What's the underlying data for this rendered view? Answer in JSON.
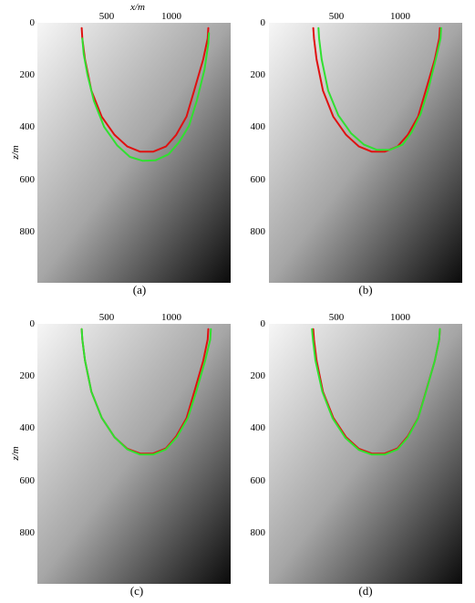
{
  "figure": {
    "x_axis_label": "x/m",
    "z_axis_label": "z/m"
  },
  "chart_data": [
    {
      "panel": "(a)",
      "type": "line",
      "x_ticks": [
        500,
        1000
      ],
      "z_ticks": [
        0,
        200,
        400,
        600,
        800
      ],
      "xlim": [
        0,
        1550
      ],
      "zlim": [
        0,
        1000
      ],
      "background": "gray velocity gradient, light top-left to dark bottom-right",
      "series": [
        {
          "color": "#e01010",
          "x": [
            345,
            350,
            370,
            420,
            500,
            600,
            700,
            800,
            900,
            1000,
            1080,
            1160,
            1220,
            1290,
            1325,
            1330
          ],
          "z": [
            20,
            60,
            140,
            260,
            360,
            430,
            475,
            495,
            495,
            475,
            430,
            360,
            260,
            140,
            60,
            20
          ]
        },
        {
          "color": "#30e030",
          "x": [
            350,
            360,
            390,
            440,
            520,
            620,
            720,
            820,
            920,
            1020,
            1100,
            1180,
            1240,
            1300,
            1330,
            1335
          ],
          "z": [
            60,
            120,
            200,
            300,
            400,
            470,
            515,
            530,
            528,
            505,
            460,
            395,
            300,
            180,
            80,
            40
          ]
        }
      ]
    },
    {
      "panel": "(b)",
      "type": "line",
      "x_ticks": [
        500,
        1000
      ],
      "z_ticks": [
        0,
        200,
        400,
        600,
        800
      ],
      "xlim": [
        0,
        1550
      ],
      "zlim": [
        0,
        1000
      ],
      "background": "gray velocity gradient, light top-left to dark bottom-right",
      "series": [
        {
          "color": "#e01010",
          "x": [
            345,
            350,
            370,
            420,
            500,
            600,
            700,
            800,
            900,
            1000,
            1080,
            1160,
            1220,
            1290,
            1325,
            1330
          ],
          "z": [
            20,
            60,
            140,
            260,
            360,
            430,
            475,
            495,
            495,
            475,
            430,
            360,
            260,
            140,
            60,
            20
          ]
        },
        {
          "color": "#30e030",
          "x": [
            385,
            390,
            410,
            460,
            540,
            640,
            740,
            840,
            940,
            1040,
            1110,
            1180,
            1240,
            1300,
            1335,
            1340
          ],
          "z": [
            20,
            60,
            140,
            260,
            355,
            425,
            468,
            488,
            488,
            468,
            420,
            350,
            255,
            135,
            60,
            20
          ]
        }
      ]
    },
    {
      "panel": "(c)",
      "type": "line",
      "x_ticks": [
        500,
        1000
      ],
      "z_ticks": [
        0,
        200,
        400,
        600,
        800
      ],
      "xlim": [
        0,
        1550
      ],
      "zlim": [
        0,
        1000
      ],
      "background": "gray velocity gradient, light top-left to dark bottom-right",
      "series": [
        {
          "color": "#e01010",
          "x": [
            345,
            350,
            370,
            420,
            500,
            600,
            700,
            800,
            900,
            1000,
            1080,
            1160,
            1220,
            1290,
            1325,
            1330
          ],
          "z": [
            20,
            60,
            140,
            260,
            360,
            435,
            480,
            498,
            498,
            478,
            432,
            362,
            262,
            142,
            60,
            20
          ]
        },
        {
          "color": "#30e030",
          "x": [
            345,
            350,
            370,
            420,
            500,
            600,
            700,
            800,
            900,
            1000,
            1085,
            1170,
            1235,
            1305,
            1345,
            1350
          ],
          "z": [
            20,
            60,
            140,
            260,
            360,
            435,
            482,
            502,
            502,
            482,
            435,
            362,
            262,
            142,
            60,
            20
          ]
        }
      ]
    },
    {
      "panel": "(d)",
      "type": "line",
      "x_ticks": [
        500,
        1000
      ],
      "z_ticks": [
        0,
        200,
        400,
        600,
        800
      ],
      "xlim": [
        0,
        1550
      ],
      "zlim": [
        0,
        1000
      ],
      "background": "gray velocity gradient, light top-left to dark bottom-right",
      "series": [
        {
          "color": "#e01010",
          "x": [
            345,
            350,
            370,
            420,
            500,
            600,
            700,
            800,
            900,
            1000,
            1080,
            1160,
            1220,
            1290,
            1325,
            1330
          ],
          "z": [
            20,
            60,
            140,
            260,
            360,
            435,
            480,
            498,
            498,
            478,
            432,
            362,
            262,
            142,
            60,
            20
          ]
        },
        {
          "color": "#30e030",
          "x": [
            335,
            342,
            362,
            415,
            495,
            595,
            700,
            800,
            900,
            1000,
            1080,
            1160,
            1220,
            1290,
            1325,
            1330
          ],
          "z": [
            20,
            60,
            140,
            260,
            362,
            438,
            484,
            502,
            502,
            482,
            436,
            364,
            264,
            142,
            60,
            20
          ]
        }
      ]
    }
  ]
}
